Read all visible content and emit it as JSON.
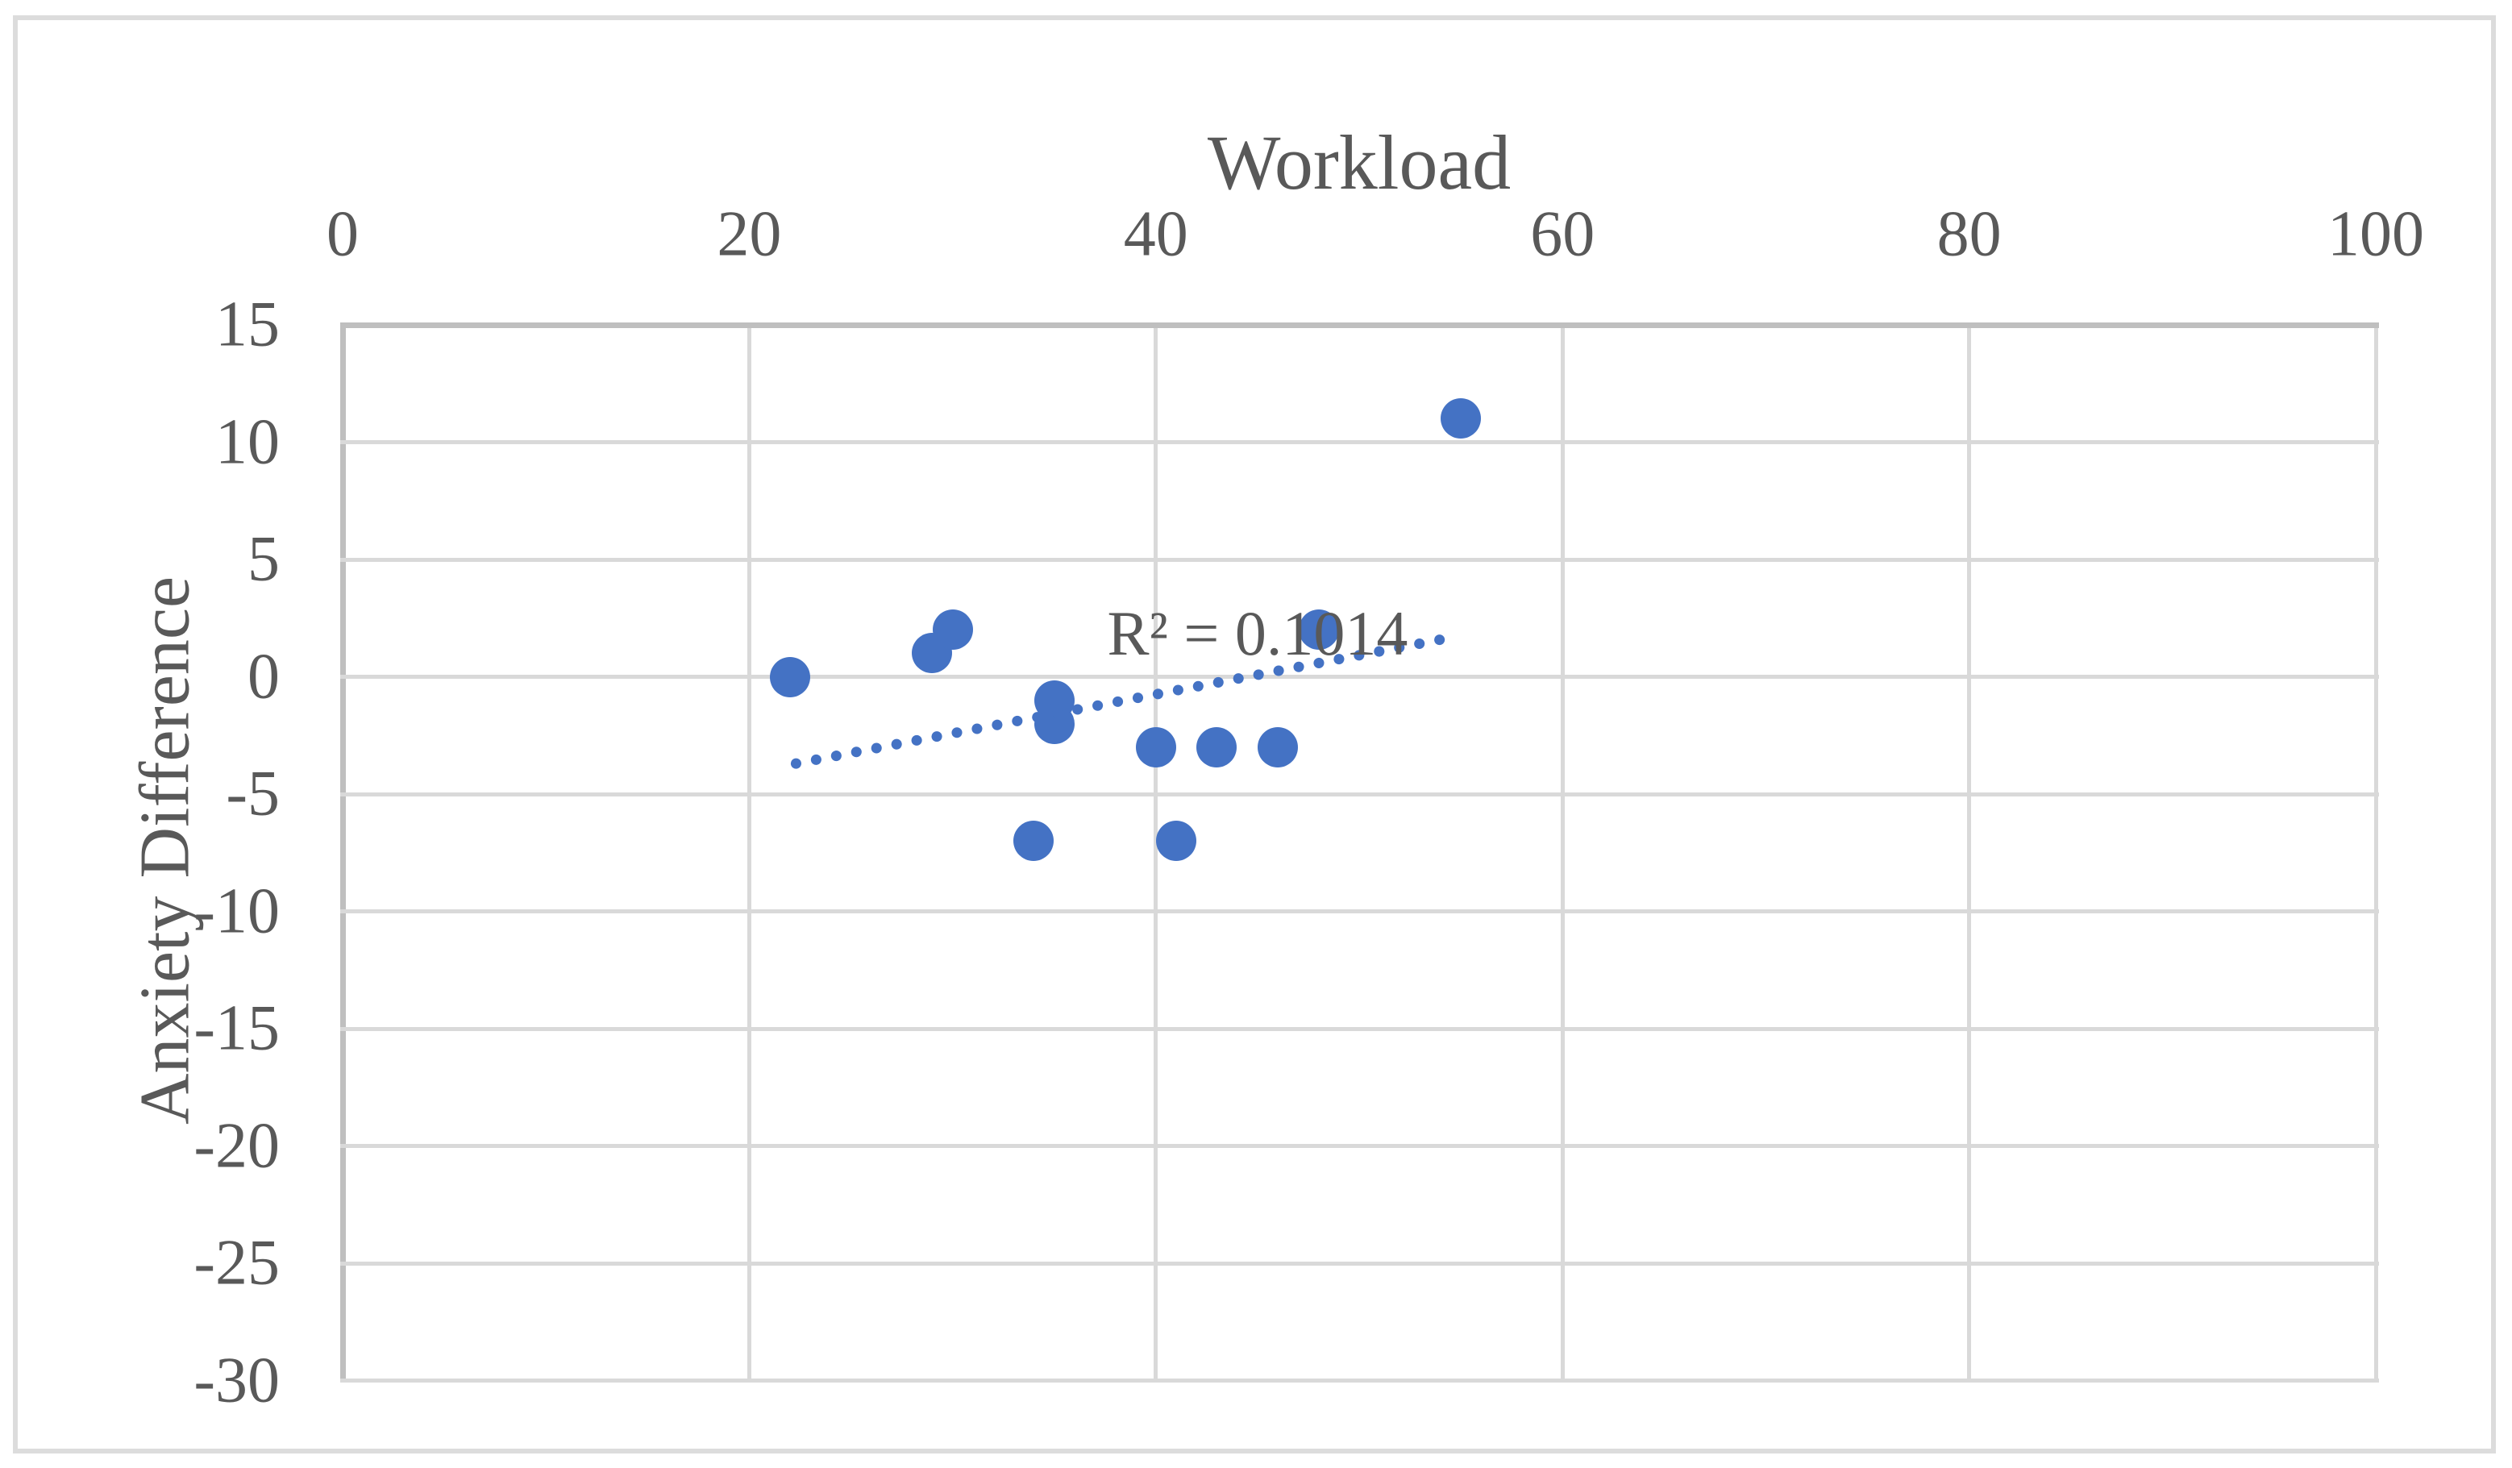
{
  "figure": {
    "title": "Workload",
    "y_axis_title": "Anxiety Difference",
    "r_squared_label": "R² = 0.1014"
  },
  "colors": {
    "marker": "#4472C4",
    "trendline": "#4472C4",
    "gridline": "#D9D9D9",
    "axis_line": "#BFBFBF",
    "text": "#595959",
    "frame_border": "#DCDCDC",
    "background": "#FFFFFF"
  },
  "chart_data": {
    "type": "scatter",
    "title": "Workload",
    "xlabel": "Workload",
    "ylabel": "Anxiety Difference",
    "xlim": [
      0,
      100
    ],
    "ylim": [
      -30,
      15
    ],
    "x_ticks": [
      0,
      20,
      40,
      60,
      80,
      100
    ],
    "y_ticks": [
      15,
      10,
      5,
      0,
      -5,
      -10,
      -15,
      -20,
      -25,
      -30
    ],
    "grid": true,
    "legend": "none",
    "points": [
      {
        "x": 22,
        "y": 0
      },
      {
        "x": 29,
        "y": 1
      },
      {
        "x": 30,
        "y": 2
      },
      {
        "x": 34,
        "y": -7
      },
      {
        "x": 35,
        "y": -1
      },
      {
        "x": 35,
        "y": -2
      },
      {
        "x": 40,
        "y": -3
      },
      {
        "x": 41,
        "y": -7
      },
      {
        "x": 43,
        "y": -3
      },
      {
        "x": 46,
        "y": -3
      },
      {
        "x": 48,
        "y": 2
      },
      {
        "x": 55,
        "y": 11
      }
    ],
    "trendline": {
      "style": "dotted",
      "x1": 22.3,
      "y1": -3.7,
      "x2": 54.4,
      "y2": 1.65
    },
    "annotation": {
      "text": "R² = 0.1014",
      "x": 45.0,
      "y": 1.85
    }
  }
}
